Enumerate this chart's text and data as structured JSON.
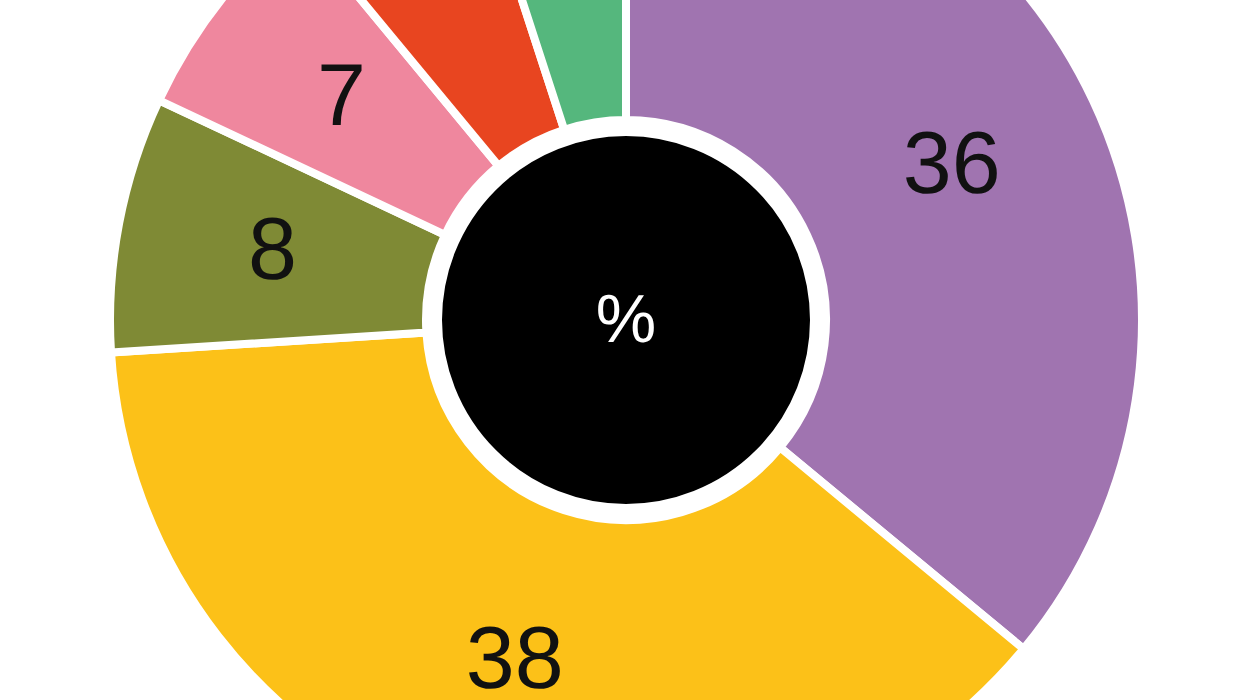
{
  "chart_data": {
    "type": "donut",
    "categories": [
      null,
      null,
      null,
      null,
      null,
      null
    ],
    "values": [
      36,
      38,
      8,
      7,
      6,
      5
    ],
    "colors": [
      "#a074b0",
      "#fcc118",
      "#7f8a35",
      "#ef879e",
      "#e84520",
      "#55b77d"
    ],
    "value_labels": [
      "36",
      "38",
      "8",
      "7",
      null,
      null
    ],
    "annotations": [
      "%"
    ]
  }
}
